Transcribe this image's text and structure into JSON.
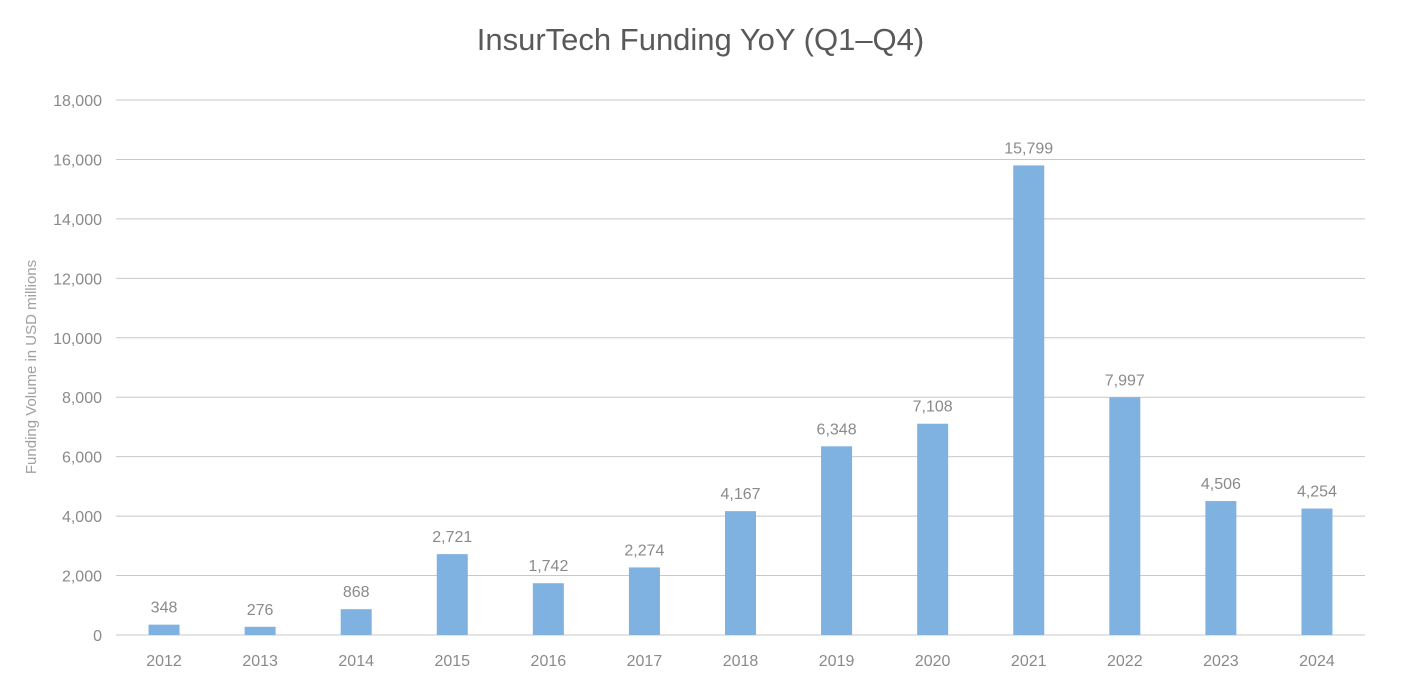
{
  "chart_data": {
    "type": "bar",
    "title": "InsurTech Funding YoY (Q1–Q4)",
    "xlabel": "",
    "ylabel": "Funding Volume in USD millions",
    "categories": [
      "2012",
      "2013",
      "2014",
      "2015",
      "2016",
      "2017",
      "2018",
      "2019",
      "2020",
      "2021",
      "2022",
      "2023",
      "2024"
    ],
    "values": [
      348,
      276,
      868,
      2721,
      1742,
      2274,
      4167,
      6348,
      7108,
      15799,
      7997,
      4506,
      4254
    ],
    "data_labels": [
      "348",
      "276",
      "868",
      "2,721",
      "1,742",
      "2,274",
      "4,167",
      "6,348",
      "7,108",
      "15,799",
      "7,997",
      "4,506",
      "4,254"
    ],
    "ylim": [
      0,
      18000
    ],
    "yticks": [
      0,
      2000,
      4000,
      6000,
      8000,
      10000,
      12000,
      14000,
      16000,
      18000
    ],
    "ytick_labels": [
      "0",
      "2,000",
      "4,000",
      "6,000",
      "8,000",
      "10,000",
      "12,000",
      "14,000",
      "16,000",
      "18,000"
    ],
    "grid": true,
    "legend": "none",
    "colors": {
      "bar": "#7FB1E1",
      "grid": "#c8c8c8",
      "text": "#8a8a8a",
      "title": "#595959"
    }
  }
}
